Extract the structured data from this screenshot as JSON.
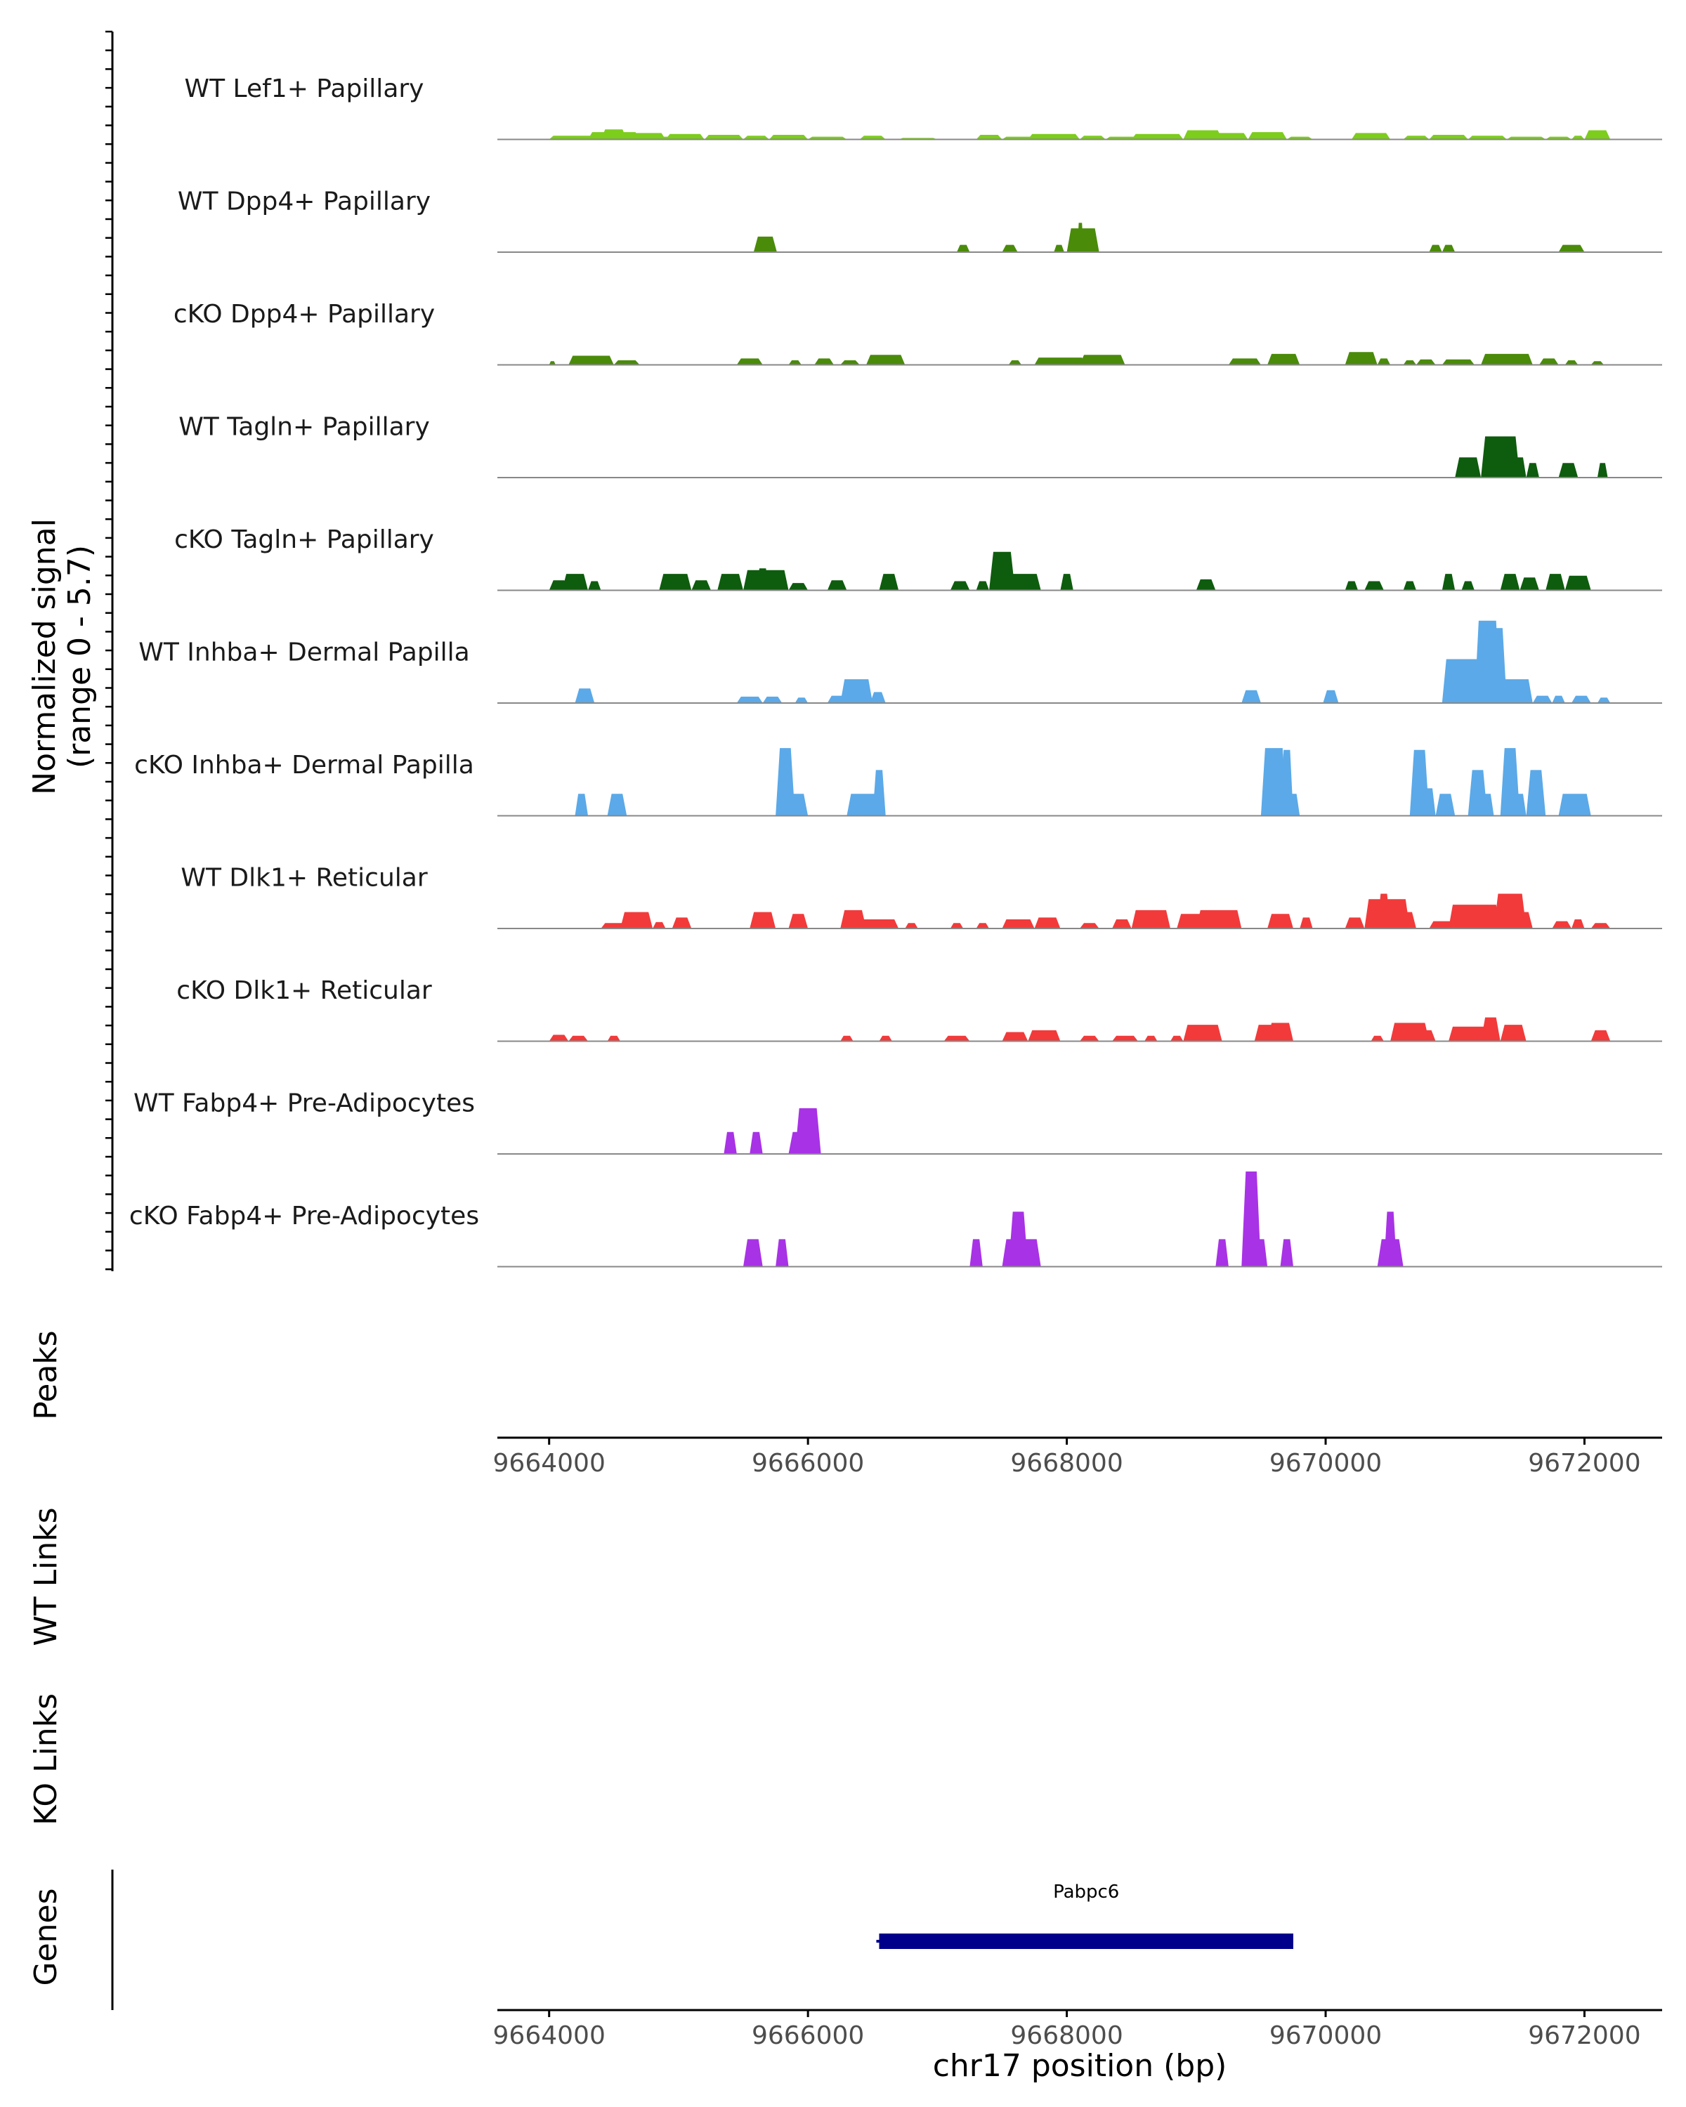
{
  "chart_data": {
    "type": "area",
    "title": "",
    "y_axis_label": "Normalized signal",
    "y_axis_range_label": "(range 0 - 5.7)",
    "ylim": [
      0,
      5.7
    ],
    "xlim": [
      9663600,
      9672600
    ],
    "xlabel": "chr17 position (bp)",
    "x_ticks": [
      "9664000",
      "9666000",
      "9668000",
      "9670000",
      "9672000"
    ],
    "x_tick_values": [
      9664000,
      9666000,
      9668000,
      9670000,
      9672000
    ],
    "tracks": [
      {
        "name": "WT Lef1+ Papillary",
        "color": "#7CCD1C",
        "peaks": [
          [
            9664000,
            9664400,
            0.2
          ],
          [
            9664300,
            9664700,
            0.4
          ],
          [
            9664400,
            9664600,
            0.55
          ],
          [
            9664600,
            9664900,
            0.35
          ],
          [
            9664800,
            9665000,
            0.15
          ],
          [
            9664900,
            9665200,
            0.3
          ],
          [
            9665200,
            9665500,
            0.25
          ],
          [
            9665500,
            9665700,
            0.2
          ],
          [
            9665700,
            9666000,
            0.25
          ],
          [
            9666000,
            9666300,
            0.15
          ],
          [
            9666400,
            9666600,
            0.2
          ],
          [
            9666700,
            9667000,
            0.08
          ],
          [
            9667300,
            9667500,
            0.25
          ],
          [
            9667500,
            9667900,
            0.15
          ],
          [
            9667700,
            9668100,
            0.3
          ],
          [
            9668100,
            9668300,
            0.2
          ],
          [
            9668300,
            9668600,
            0.15
          ],
          [
            9668500,
            9668900,
            0.3
          ],
          [
            9668900,
            9669200,
            0.5
          ],
          [
            9669100,
            9669400,
            0.35
          ],
          [
            9669400,
            9669700,
            0.4
          ],
          [
            9669700,
            9669900,
            0.15
          ],
          [
            9670200,
            9670500,
            0.35
          ],
          [
            9670600,
            9670800,
            0.2
          ],
          [
            9670800,
            9671100,
            0.25
          ],
          [
            9671100,
            9671400,
            0.2
          ],
          [
            9671400,
            9671700,
            0.15
          ],
          [
            9671700,
            9671900,
            0.15
          ],
          [
            9671900,
            9672000,
            0.2
          ],
          [
            9672000,
            9672200,
            0.5
          ]
        ]
      },
      {
        "name": "WT Dpp4+ Papillary",
        "color": "#4A8B0A",
        "peaks": [
          [
            9665580,
            9665760,
            0.85
          ],
          [
            9667150,
            9667250,
            0.4
          ],
          [
            9667500,
            9667620,
            0.4
          ],
          [
            9667900,
            9667980,
            0.4
          ],
          [
            9668000,
            9668250,
            1.3
          ],
          [
            9668080,
            9668130,
            1.6
          ],
          [
            9670800,
            9670900,
            0.4
          ],
          [
            9670900,
            9671000,
            0.4
          ],
          [
            9671800,
            9672000,
            0.4
          ]
        ]
      },
      {
        "name": "cKO Dpp4+ Papillary",
        "color": "#4A8B0A",
        "peaks": [
          [
            9664000,
            9664050,
            0.2
          ],
          [
            9664150,
            9664500,
            0.5
          ],
          [
            9664500,
            9664700,
            0.25
          ],
          [
            9665450,
            9665650,
            0.35
          ],
          [
            9665850,
            9665950,
            0.25
          ],
          [
            9666050,
            9666200,
            0.35
          ],
          [
            9666250,
            9666400,
            0.25
          ],
          [
            9666450,
            9666750,
            0.55
          ],
          [
            9667550,
            9667650,
            0.25
          ],
          [
            9667750,
            9668150,
            0.4
          ],
          [
            9668100,
            9668450,
            0.55
          ],
          [
            9669250,
            9669500,
            0.35
          ],
          [
            9669550,
            9669800,
            0.6
          ],
          [
            9670150,
            9670400,
            0.7
          ],
          [
            9670400,
            9670500,
            0.35
          ],
          [
            9670600,
            9670700,
            0.25
          ],
          [
            9670700,
            9670850,
            0.3
          ],
          [
            9670900,
            9671150,
            0.3
          ],
          [
            9671200,
            9671600,
            0.6
          ],
          [
            9671650,
            9671800,
            0.35
          ],
          [
            9671850,
            9671950,
            0.25
          ],
          [
            9672050,
            9672150,
            0.2
          ]
        ]
      },
      {
        "name": "WT Tagln+ Papillary",
        "color": "#0E5C0E",
        "peaks": [
          [
            9671000,
            9671200,
            1.1
          ],
          [
            9671200,
            9671500,
            2.25
          ],
          [
            9671450,
            9671550,
            1.1
          ],
          [
            9671550,
            9671650,
            0.8
          ],
          [
            9671800,
            9671950,
            0.8
          ],
          [
            9672100,
            9672180,
            0.8
          ]
        ]
      },
      {
        "name": "cKO Tagln+ Papillary",
        "color": "#0E5C0E",
        "peaks": [
          [
            9664000,
            9664150,
            0.55
          ],
          [
            9664100,
            9664300,
            0.9
          ],
          [
            9664300,
            9664400,
            0.5
          ],
          [
            9664850,
            9665100,
            0.9
          ],
          [
            9665100,
            9665250,
            0.55
          ],
          [
            9665300,
            9665500,
            0.9
          ],
          [
            9665500,
            9665850,
            1.1
          ],
          [
            9665600,
            9665700,
            1.2
          ],
          [
            9665850,
            9666000,
            0.4
          ],
          [
            9666150,
            9666300,
            0.55
          ],
          [
            9666550,
            9666700,
            0.9
          ],
          [
            9667100,
            9667250,
            0.5
          ],
          [
            9667300,
            9667400,
            0.5
          ],
          [
            9667400,
            9667600,
            2.1
          ],
          [
            9667550,
            9667800,
            0.9
          ],
          [
            9667950,
            9668050,
            0.9
          ],
          [
            9669000,
            9669150,
            0.6
          ],
          [
            9670150,
            9670250,
            0.5
          ],
          [
            9670300,
            9670450,
            0.5
          ],
          [
            9670600,
            9670700,
            0.5
          ],
          [
            9670900,
            9671000,
            0.9
          ],
          [
            9671050,
            9671150,
            0.5
          ],
          [
            9671350,
            9671500,
            0.9
          ],
          [
            9671500,
            9671650,
            0.7
          ],
          [
            9671700,
            9671850,
            0.9
          ],
          [
            9671850,
            9672050,
            0.8
          ]
        ]
      },
      {
        "name": "WT Inhba+ Dermal Papilla",
        "color": "#5BA9E8",
        "peaks": [
          [
            9664200,
            9664350,
            0.8
          ],
          [
            9665450,
            9665650,
            0.35
          ],
          [
            9665650,
            9665800,
            0.35
          ],
          [
            9665900,
            9666000,
            0.3
          ],
          [
            9666150,
            9666300,
            0.4
          ],
          [
            9666250,
            9666500,
            1.3
          ],
          [
            9666480,
            9666600,
            0.6
          ],
          [
            9669350,
            9669500,
            0.7
          ],
          [
            9669980,
            9670100,
            0.7
          ],
          [
            9670900,
            9671200,
            2.4
          ],
          [
            9671150,
            9671350,
            4.5
          ],
          [
            9671200,
            9671400,
            4.1
          ],
          [
            9671350,
            9671600,
            1.3
          ],
          [
            9671600,
            9671750,
            0.4
          ],
          [
            9671750,
            9671850,
            0.4
          ],
          [
            9671900,
            9672050,
            0.4
          ],
          [
            9672100,
            9672200,
            0.3
          ]
        ]
      },
      {
        "name": "cKO Inhba+ Dermal Papilla",
        "color": "#5BA9E8",
        "peaks": [
          [
            9664200,
            9664300,
            1.2
          ],
          [
            9664450,
            9664600,
            1.2
          ],
          [
            9665750,
            9665900,
            3.7
          ],
          [
            9665850,
            9666000,
            1.2
          ],
          [
            9666300,
            9666550,
            1.2
          ],
          [
            9666500,
            9666600,
            2.5
          ],
          [
            9669500,
            9669700,
            3.7
          ],
          [
            9669650,
            9669750,
            3.6
          ],
          [
            9669700,
            9669800,
            1.2
          ],
          [
            9670650,
            9670800,
            3.6
          ],
          [
            9670750,
            9670850,
            1.5
          ],
          [
            9670850,
            9671000,
            1.2
          ],
          [
            9671100,
            9671250,
            2.5
          ],
          [
            9671200,
            9671300,
            1.2
          ],
          [
            9671350,
            9671500,
            3.7
          ],
          [
            9671450,
            9671550,
            1.2
          ],
          [
            9671550,
            9671700,
            2.5
          ],
          [
            9671800,
            9672050,
            1.2
          ]
        ]
      },
      {
        "name": "WT Dlk1+ Reticular",
        "color": "#F23A3A",
        "peaks": [
          [
            9664400,
            9664600,
            0.3
          ],
          [
            9664550,
            9664800,
            0.9
          ],
          [
            9664800,
            9664900,
            0.35
          ],
          [
            9664950,
            9665100,
            0.6
          ],
          [
            9665550,
            9665750,
            0.9
          ],
          [
            9665850,
            9666000,
            0.8
          ],
          [
            9666250,
            9666450,
            1.0
          ],
          [
            9666400,
            9666700,
            0.5
          ],
          [
            9666750,
            9666850,
            0.3
          ],
          [
            9667100,
            9667200,
            0.3
          ],
          [
            9667300,
            9667400,
            0.3
          ],
          [
            9667500,
            9667750,
            0.5
          ],
          [
            9667750,
            9667950,
            0.6
          ],
          [
            9668100,
            9668250,
            0.3
          ],
          [
            9668350,
            9668500,
            0.5
          ],
          [
            9668500,
            9668800,
            1.0
          ],
          [
            9668850,
            9669100,
            0.8
          ],
          [
            9669000,
            9669350,
            1.0
          ],
          [
            9669550,
            9669750,
            0.8
          ],
          [
            9669800,
            9669900,
            0.6
          ],
          [
            9670150,
            9670300,
            0.6
          ],
          [
            9670300,
            9670650,
            1.6
          ],
          [
            9670400,
            9670500,
            1.9
          ],
          [
            9670550,
            9670700,
            0.9
          ],
          [
            9670800,
            9671000,
            0.4
          ],
          [
            9670950,
            9671350,
            1.3
          ],
          [
            9671300,
            9671550,
            1.9
          ],
          [
            9671450,
            9671600,
            0.9
          ],
          [
            9671750,
            9671900,
            0.4
          ],
          [
            9671900,
            9672000,
            0.5
          ],
          [
            9672050,
            9672200,
            0.3
          ]
        ]
      },
      {
        "name": "cKO Dlk1+ Reticular",
        "color": "#F23A3A",
        "peaks": [
          [
            9664000,
            9664150,
            0.35
          ],
          [
            9664150,
            9664300,
            0.3
          ],
          [
            9664450,
            9664550,
            0.3
          ],
          [
            9666250,
            9666350,
            0.3
          ],
          [
            9666550,
            9666650,
            0.3
          ],
          [
            9667050,
            9667250,
            0.3
          ],
          [
            9667500,
            9667700,
            0.5
          ],
          [
            9667700,
            9667950,
            0.6
          ],
          [
            9668100,
            9668250,
            0.3
          ],
          [
            9668350,
            9668550,
            0.3
          ],
          [
            9668600,
            9668700,
            0.3
          ],
          [
            9668800,
            9668900,
            0.3
          ],
          [
            9668900,
            9669200,
            0.9
          ],
          [
            9669450,
            9669700,
            0.9
          ],
          [
            9669550,
            9669750,
            1.0
          ],
          [
            9670350,
            9670450,
            0.3
          ],
          [
            9670500,
            9670800,
            1.0
          ],
          [
            9670700,
            9670850,
            0.6
          ],
          [
            9670950,
            9671350,
            0.8
          ],
          [
            9671200,
            9671350,
            1.3
          ],
          [
            9671350,
            9671550,
            0.9
          ],
          [
            9672050,
            9672200,
            0.6
          ]
        ]
      },
      {
        "name": "WT Fabp4+ Pre-Adipocytes",
        "color": "#A832E6",
        "peaks": [
          [
            9665350,
            9665450,
            1.2
          ],
          [
            9665550,
            9665650,
            1.2
          ],
          [
            9665850,
            9666000,
            1.2
          ],
          [
            9665900,
            9666100,
            2.5
          ]
        ]
      },
      {
        "name": "cKO Fabp4+ Pre-Adipocytes",
        "color": "#A832E6",
        "peaks": [
          [
            9665500,
            9665650,
            1.5
          ],
          [
            9665750,
            9665850,
            1.5
          ],
          [
            9667250,
            9667350,
            1.5
          ],
          [
            9667500,
            9667650,
            1.5
          ],
          [
            9667550,
            9667700,
            3.0
          ],
          [
            9667650,
            9667800,
            1.5
          ],
          [
            9669150,
            9669250,
            1.5
          ],
          [
            9669350,
            9669500,
            5.2
          ],
          [
            9669450,
            9669550,
            1.5
          ],
          [
            9669650,
            9669750,
            1.5
          ],
          [
            9670400,
            9670600,
            1.5
          ],
          [
            9670450,
            9670550,
            3.0
          ]
        ]
      }
    ],
    "peaks_label": "Peaks",
    "wt_links_label": "WT Links",
    "ko_links_label": "KO Links",
    "genes_label": "Genes",
    "genes": [
      {
        "name": "Pabpc6",
        "start": 9666550,
        "end": 9669750,
        "strand": "-",
        "color": "#00008B"
      }
    ]
  }
}
